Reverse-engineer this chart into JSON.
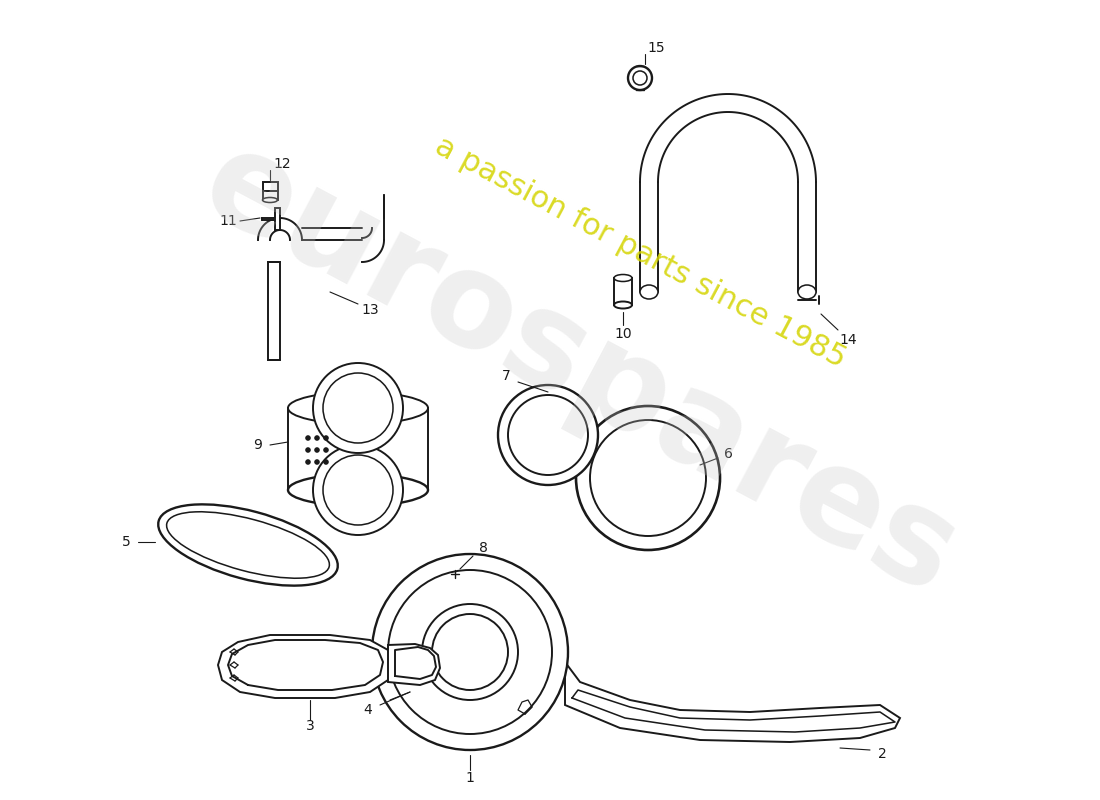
{
  "background_color": "#ffffff",
  "line_color": "#1a1a1a",
  "watermark_text1": "eurospares",
  "watermark_text2": "a passion for parts since 1985",
  "watermark_color1": "#c8c8c8",
  "watermark_color2": "#d4d400",
  "lw": 1.4
}
